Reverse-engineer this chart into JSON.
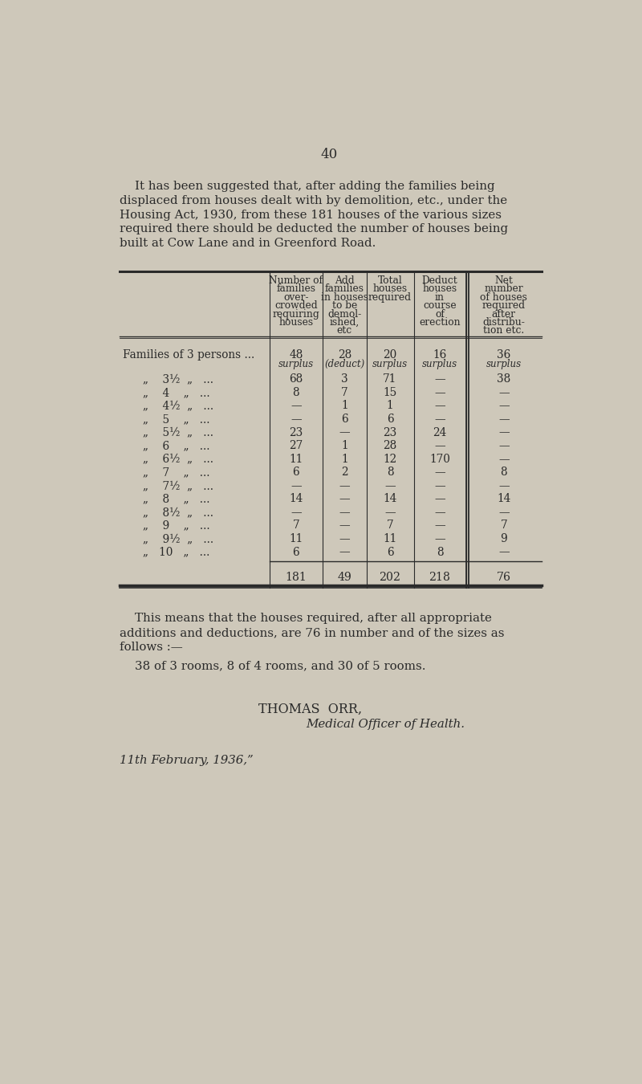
{
  "bg_color": "#cec8ba",
  "text_color": "#2a2a2a",
  "page_number": "40",
  "intro_line1": "    It has been suggested that, after adding the families being",
  "intro_line2": "displaced from houses dealt with by demolition, etc., under the",
  "intro_line3": "Housing Act, 1930, from these 181 houses of the various sizes",
  "intro_line4": "required there should be deducted the number of houses being",
  "intro_line5": "built at Cow Lane and in Greenford Road.",
  "col_headers": [
    [
      "Number of",
      "families",
      "over-",
      "crowded",
      "requiring",
      "houses"
    ],
    [
      "Add",
      "families",
      "in houses",
      "to be",
      "demol-",
      "ished,",
      "etc"
    ],
    [
      "Total",
      "houses",
      "required"
    ],
    [
      "Deduct",
      "houses",
      "in",
      "course",
      "of",
      "erection"
    ],
    [
      "Net",
      "number",
      "of houses",
      "required",
      "after",
      "distribu-",
      "tion etc."
    ]
  ],
  "rows": [
    {
      "label1": "Families of 3 persons ...",
      "label2": "",
      "v1": "48",
      "v1b": "surplus",
      "v2": "28",
      "v2b": "(deduct)",
      "v3": "20",
      "v3b": "surplus",
      "v4": "16",
      "v4b": "surplus",
      "v5": "36",
      "v5b": "surplus"
    },
    {
      "label1": "„    3½  „   ...",
      "label2": "",
      "v1": "68",
      "v1b": "",
      "v2": "3",
      "v2b": "",
      "v3": "71",
      "v3b": "",
      "v4": "—",
      "v4b": "",
      "v5": "38",
      "v5b": ""
    },
    {
      "label1": "„    4    „   ...",
      "label2": "",
      "v1": "8",
      "v1b": "",
      "v2": "7",
      "v2b": "",
      "v3": "15",
      "v3b": "",
      "v4": "—",
      "v4b": "",
      "v5": "—",
      "v5b": ""
    },
    {
      "label1": "„    4½  „   ...",
      "label2": "",
      "v1": "—",
      "v1b": "",
      "v2": "1",
      "v2b": "",
      "v3": "1",
      "v3b": "",
      "v4": "—",
      "v4b": "",
      "v5": "—",
      "v5b": ""
    },
    {
      "label1": "„    5    „   ...",
      "label2": "",
      "v1": "—",
      "v1b": "",
      "v2": "6",
      "v2b": "",
      "v3": "6",
      "v3b": "",
      "v4": "—",
      "v4b": "",
      "v5": "—",
      "v5b": ""
    },
    {
      "label1": "„    5½  „   ...",
      "label2": "",
      "v1": "23",
      "v1b": "",
      "v2": "—",
      "v2b": "",
      "v3": "23",
      "v3b": "",
      "v4": "24",
      "v4b": "",
      "v5": "—",
      "v5b": ""
    },
    {
      "label1": "„    6    „   ...",
      "label2": "",
      "v1": "27",
      "v1b": "",
      "v2": "1",
      "v2b": "",
      "v3": "28",
      "v3b": "",
      "v4": "—",
      "v4b": "",
      "v5": "—",
      "v5b": ""
    },
    {
      "label1": "„    6½  „   ...",
      "label2": "",
      "v1": "11",
      "v1b": "",
      "v2": "1",
      "v2b": "",
      "v3": "12",
      "v3b": "",
      "v4": "170",
      "v4b": "",
      "v5": "—",
      "v5b": ""
    },
    {
      "label1": "„    7    „   ...",
      "label2": "",
      "v1": "6",
      "v1b": "",
      "v2": "2",
      "v2b": "",
      "v3": "8",
      "v3b": "",
      "v4": "—",
      "v4b": "",
      "v5": "8",
      "v5b": ""
    },
    {
      "label1": "„    7½  „   ...",
      "label2": "",
      "v1": "—",
      "v1b": "",
      "v2": "—",
      "v2b": "",
      "v3": "—",
      "v3b": "",
      "v4": "—",
      "v4b": "",
      "v5": "—",
      "v5b": ""
    },
    {
      "label1": "„    8    „   ...",
      "label2": "",
      "v1": "14",
      "v1b": "",
      "v2": "—",
      "v2b": "",
      "v3": "14",
      "v3b": "",
      "v4": "—",
      "v4b": "",
      "v5": "14",
      "v5b": ""
    },
    {
      "label1": "„    8½  „   ...",
      "label2": "",
      "v1": "—",
      "v1b": "",
      "v2": "—",
      "v2b": "",
      "v3": "—",
      "v3b": "",
      "v4": "—",
      "v4b": "",
      "v5": "—",
      "v5b": ""
    },
    {
      "label1": "„    9    „   ...",
      "label2": "",
      "v1": "7",
      "v1b": "",
      "v2": "—",
      "v2b": "",
      "v3": "7",
      "v3b": "",
      "v4": "—",
      "v4b": "",
      "v5": "7",
      "v5b": ""
    },
    {
      "label1": "„    9½  „   ...",
      "label2": "",
      "v1": "11",
      "v1b": "",
      "v2": "—",
      "v2b": "",
      "v3": "11",
      "v3b": "",
      "v4": "—",
      "v4b": "",
      "v5": "9",
      "v5b": ""
    },
    {
      "label1": "„   10   „   ...",
      "label2": "",
      "v1": "6",
      "v1b": "",
      "v2": "—",
      "v2b": "",
      "v3": "6",
      "v3b": "",
      "v4": "8",
      "v4b": "",
      "v5": "—",
      "v5b": ""
    }
  ],
  "totals": [
    "181",
    "49",
    "202",
    "218",
    "76"
  ],
  "outro_indent": "    This means that the houses required, after all appropriate",
  "outro_line2": "additions and deductions, are 76 in number and of the sizes as",
  "outro_line3": "follows :—",
  "rooms_text": "    38 of 3 rooms, 8 of 4 rooms, and 30 of 5 rooms.",
  "signature_name": "THOMAS  ORR,",
  "signature_title": "Medical Officer of Health.",
  "date_text": "11th February, 1936,”"
}
